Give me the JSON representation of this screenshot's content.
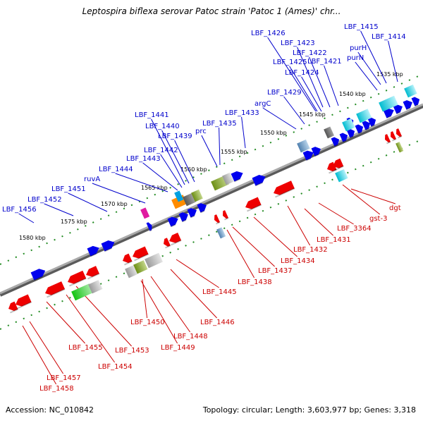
{
  "title": "Leptospira biflexa serovar Patoc strain 'Patoc 1 (Ames)' chr...",
  "footer": {
    "accession": "Accession: NC_010842",
    "info": "Topology: circular; Length: 3,603,977 bp; Genes: 3,318"
  },
  "colors": {
    "forward_label": "#0000cc",
    "reverse_label": "#cc0000",
    "backbone": "#808080",
    "forward_gene": "#0000ee",
    "reverse_gene": "#ee0000",
    "tick": "#228b22"
  },
  "scale_labels": [
    "1535 kbp",
    "1540 kbp",
    "1545 kbp",
    "1550 kbp",
    "1555 kbp",
    "1560 kbp",
    "1565 kbp",
    "1570 kbp",
    "1575 kbp",
    "1580 kbp"
  ],
  "forward_labels": [
    "LBF_1415",
    "LBF_1414",
    "LBF_1426",
    "LBF_1423",
    "LBF_1422",
    "purH",
    "LBF_1425",
    "LBF_1421",
    "purN",
    "LBF_1424",
    "LBF_1429",
    "argC",
    "LBF_1441",
    "LBF_1433",
    "LBF_1440",
    "LBF_1435",
    "prc",
    "LBF_1439",
    "LBF_1442",
    "LBF_1443",
    "LBF_1444",
    "ruvA",
    "LBF_1451",
    "LBF_1452",
    "LBF_1456"
  ],
  "reverse_labels": [
    "dgt",
    "gst-3",
    "LBF_3364",
    "LBF_1431",
    "LBF_1432",
    "LBF_1434",
    "LBF_1437",
    "LBF_1438",
    "LBF_1445",
    "LBF_1446",
    "LBF_1450",
    "LBF_1448",
    "LBF_1449",
    "LBF_1453",
    "LBF_1455",
    "LBF_1454",
    "LBF_1457",
    "LBF_1458"
  ]
}
